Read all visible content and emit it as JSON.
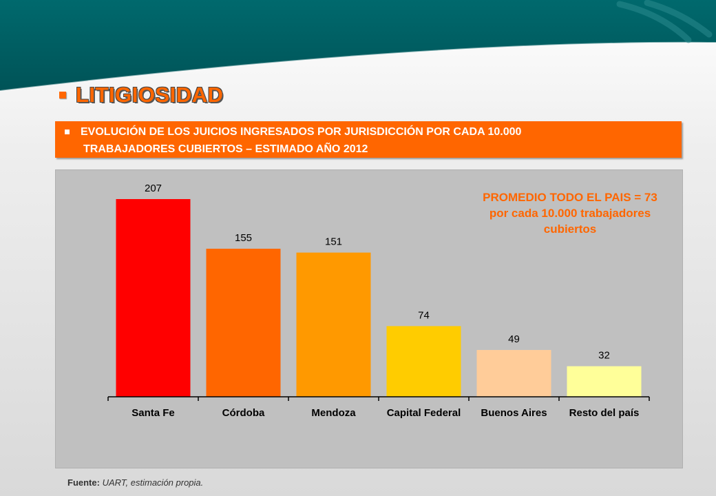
{
  "slide": {
    "title": "LITIGIOSIDAD",
    "subtitle_line1": "EVOLUCIÓN DE LOS JUICIOS INGRESADOS POR JURISDICCIÓN POR CADA 10.000",
    "subtitle_line2": "TRABAJADORES CUBIERTOS – ESTIMADO AÑO 2012",
    "average_note": [
      "PROMEDIO TODO EL PAIS = 73",
      "por cada 10.000 trabajadores",
      "cubiertos"
    ],
    "source_label": "Fuente:",
    "source_text": "UART, estimación propia.",
    "accent_color": "#ff6600",
    "header_color": "#006b6e"
  },
  "chart_data": {
    "type": "bar",
    "title": "",
    "xlabel": "",
    "ylabel": "",
    "categories": [
      "Santa Fe",
      "Córdoba",
      "Mendoza",
      "Capital Federal",
      "Buenos Aires",
      "Resto del país"
    ],
    "values": [
      207,
      155,
      151,
      74,
      49,
      32
    ],
    "bar_colors": [
      "#ff0000",
      "#ff6600",
      "#ff9900",
      "#ffcc00",
      "#ffcc99",
      "#ffff99"
    ],
    "ylim": [
      0,
      207
    ],
    "data_labels": true,
    "grid": false,
    "legend": "none"
  }
}
